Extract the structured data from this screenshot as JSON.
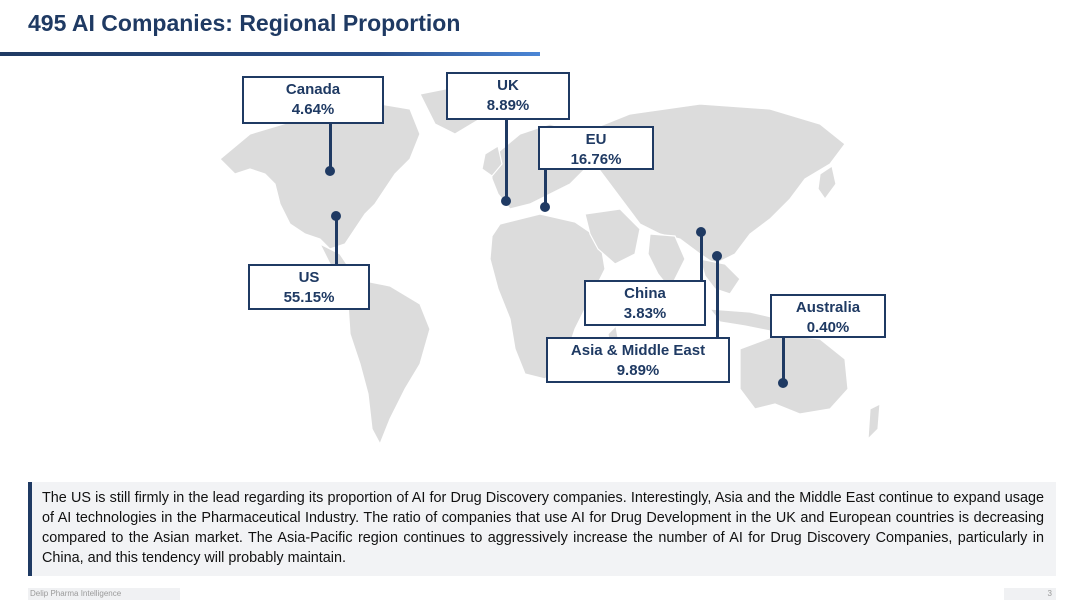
{
  "title": "495 AI Companies: Regional Proportion",
  "regions": [
    {
      "name": "Canada",
      "value": "4.64%"
    },
    {
      "name": "UK",
      "value": "8.89%"
    },
    {
      "name": "EU",
      "value": "16.76%"
    },
    {
      "name": "US",
      "value": "55.15%"
    },
    {
      "name": "China",
      "value": "3.83%"
    },
    {
      "name": "Australia",
      "value": "0.40%"
    },
    {
      "name": "Asia & Middle East",
      "value": "9.89%"
    }
  ],
  "description": "The US is still firmly in the lead regarding its proportion of AI for Drug Discovery companies. Interestingly, Asia and the Middle East continue to expand usage of AI technologies in the Pharmaceutical Industry. The ratio of companies that use AI for Drug Development in the UK and European countries is decreasing compared to the Asian market. The Asia-Pacific region continues to aggressively increase the number of AI for Drug Discovery Companies, particularly in China, and this tendency will probably maintain.",
  "footer": {
    "source": "Delip Pharma Intelligence",
    "page": "3"
  },
  "colors": {
    "accent": "#1f3a63",
    "land": "#dcdcdc",
    "panel": "#f2f3f5"
  }
}
